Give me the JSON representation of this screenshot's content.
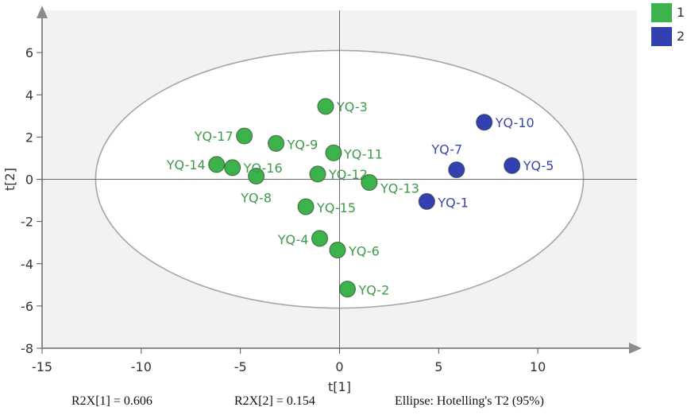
{
  "chart_data": {
    "type": "scatter",
    "title": "",
    "xlabel": "t[1]",
    "ylabel": "t[2]",
    "xlim": [
      -15,
      15
    ],
    "ylim": [
      -8,
      8
    ],
    "xticks": [
      -15,
      -10,
      -5,
      0,
      5,
      10
    ],
    "yticks": [
      -8,
      -6,
      -4,
      -2,
      0,
      2,
      4,
      6
    ],
    "grid": false,
    "legend_position": "top-right",
    "series": [
      {
        "name": "1",
        "color": "#3cb24a",
        "points": [
          {
            "label": "YQ-3",
            "x": -0.7,
            "y": 3.45
          },
          {
            "label": "YQ-17",
            "x": -4.8,
            "y": 2.05
          },
          {
            "label": "YQ-9",
            "x": -3.2,
            "y": 1.7
          },
          {
            "label": "YQ-11",
            "x": -0.3,
            "y": 1.25
          },
          {
            "label": "YQ-14",
            "x": -6.2,
            "y": 0.7
          },
          {
            "label": "YQ-16",
            "x": -5.4,
            "y": 0.55
          },
          {
            "label": "YQ-8",
            "x": -4.2,
            "y": 0.15
          },
          {
            "label": "YQ-12",
            "x": -1.1,
            "y": 0.25
          },
          {
            "label": "YQ-13",
            "x": 1.5,
            "y": -0.15
          },
          {
            "label": "YQ-15",
            "x": -1.7,
            "y": -1.3
          },
          {
            "label": "YQ-4",
            "x": -1.0,
            "y": -2.8
          },
          {
            "label": "YQ-6",
            "x": -0.1,
            "y": -3.35
          },
          {
            "label": "YQ-2",
            "x": 0.4,
            "y": -5.2
          }
        ]
      },
      {
        "name": "2",
        "color": "#3340b2",
        "points": [
          {
            "label": "YQ-10",
            "x": 7.3,
            "y": 2.7
          },
          {
            "label": "YQ-7",
            "x": 5.9,
            "y": 0.45
          },
          {
            "label": "YQ-5",
            "x": 8.7,
            "y": 0.65
          },
          {
            "label": "YQ-1",
            "x": 4.4,
            "y": -1.05
          }
        ]
      }
    ],
    "ellipse": {
      "label": "Ellipse: Hotelling's T2 (95%)",
      "rx": 12.3,
      "ry": 6.1
    }
  },
  "footer": {
    "r2x1": "R2X[1] = 0.606",
    "r2x2": "R2X[2] = 0.154",
    "ellipse": "Ellipse: Hotelling's T2 (95%)"
  },
  "legend": [
    {
      "label": "1",
      "color": "#3cb24a"
    },
    {
      "label": "2",
      "color": "#3340b2"
    }
  ]
}
